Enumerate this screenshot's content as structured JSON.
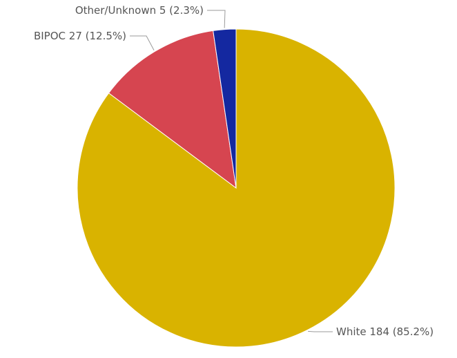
{
  "chart_data": {
    "type": "pie",
    "start_angle": "top",
    "direction": "clockwise",
    "slices": [
      {
        "label": "White",
        "value": 184,
        "percent": 85.2,
        "color": "#D9B300",
        "display": "White 184 (85.2%)"
      },
      {
        "label": "BIPOC",
        "value": 27,
        "percent": 12.5,
        "color": "#D64550",
        "display": "BIPOC 27 (12.5%)"
      },
      {
        "label": "Other/Unknown",
        "value": 5,
        "percent": 2.3,
        "color": "#1428A0",
        "display": "Other/Unknown 5 (2.3%)"
      }
    ],
    "legend": "none"
  }
}
